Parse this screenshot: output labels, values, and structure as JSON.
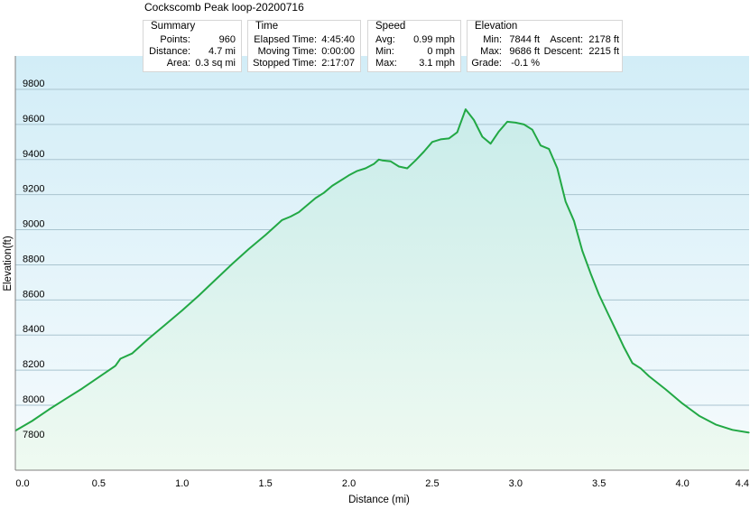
{
  "window_title": "Cockscomb Peak loop-20200716",
  "summary": {
    "header": "Summary",
    "points_label": "Points:",
    "points_value": "960",
    "distance_label": "Distance:",
    "distance_value": "4.7 mi",
    "area_label": "Area:",
    "area_value": "0.3 sq mi"
  },
  "time": {
    "header": "Time",
    "elapsed_label": "Elapsed Time:",
    "elapsed_value": "4:45:40",
    "moving_label": "Moving Time:",
    "moving_value": "0:00:00",
    "stopped_label": "Stopped Time:",
    "stopped_value": "2:17:07"
  },
  "speed": {
    "header": "Speed",
    "avg_label": "Avg:",
    "avg_value": "0.99 mph",
    "min_label": "Min:",
    "min_value": "0 mph",
    "max_label": "Max:",
    "max_value": "3.1 mph"
  },
  "elevation": {
    "header": "Elevation",
    "min_label": "Min:",
    "min_value": "7844 ft",
    "max_label": "Max:",
    "max_value": "9686 ft",
    "grade_label": "Grade:",
    "grade_value": "-0.1 %",
    "ascent_label": "Ascent:",
    "ascent_value": "2178 ft",
    "descent_label": "Descent:",
    "descent_value": "2215 ft"
  },
  "chart_data": {
    "type": "area",
    "title": "",
    "xlabel": "Distance  (mi)",
    "ylabel": "Elevation(ft)",
    "xlim": [
      0,
      4.4
    ],
    "ylim": [
      7630,
      9990
    ],
    "x_ticks": [
      0.0,
      0.5,
      1.0,
      1.5,
      2.0,
      2.5,
      3.0,
      3.5,
      4.0,
      4.4
    ],
    "x_tick_labels": [
      "0.0",
      "0.5",
      "1.0",
      "1.5",
      "2.0",
      "2.5",
      "3.0",
      "3.5",
      "4.0",
      "4.4"
    ],
    "y_ticks": [
      7800,
      8000,
      8200,
      8400,
      8600,
      8800,
      9000,
      9200,
      9400,
      9600,
      9800
    ],
    "y_tick_labels": [
      "7800",
      "8000",
      "8200",
      "8400",
      "8600",
      "8800",
      "9000",
      "9200",
      "9400",
      "9600",
      "9800"
    ],
    "grid": true,
    "line_color": "#22a845",
    "fill_top_color": "#c9ecea",
    "fill_bottom_color": "#effaf1",
    "background_top_color": "#d2edf7",
    "background_bottom_color": "#f6fbfd",
    "x": [
      0.0,
      0.1,
      0.2,
      0.3,
      0.4,
      0.5,
      0.6,
      0.63,
      0.7,
      0.8,
      0.9,
      1.0,
      1.1,
      1.2,
      1.3,
      1.4,
      1.5,
      1.6,
      1.65,
      1.7,
      1.8,
      1.85,
      1.9,
      2.0,
      2.05,
      2.1,
      2.15,
      2.18,
      2.2,
      2.25,
      2.3,
      2.35,
      2.4,
      2.45,
      2.5,
      2.55,
      2.6,
      2.65,
      2.7,
      2.75,
      2.8,
      2.85,
      2.9,
      2.95,
      3.0,
      3.05,
      3.1,
      3.15,
      3.2,
      3.25,
      3.3,
      3.35,
      3.4,
      3.45,
      3.5,
      3.55,
      3.6,
      3.65,
      3.7,
      3.75,
      3.8,
      3.9,
      4.0,
      4.1,
      4.2,
      4.3,
      4.4
    ],
    "y": [
      7855,
      7910,
      7975,
      8035,
      8095,
      8160,
      8225,
      8265,
      8295,
      8380,
      8460,
      8540,
      8625,
      8715,
      8805,
      8890,
      8970,
      9055,
      9075,
      9100,
      9180,
      9210,
      9250,
      9310,
      9335,
      9350,
      9375,
      9400,
      9395,
      9390,
      9360,
      9350,
      9395,
      9445,
      9500,
      9515,
      9520,
      9555,
      9686,
      9625,
      9530,
      9490,
      9560,
      9615,
      9610,
      9600,
      9570,
      9480,
      9460,
      9350,
      9160,
      9050,
      8880,
      8750,
      8630,
      8530,
      8430,
      8330,
      8240,
      8210,
      8165,
      8090,
      8010,
      7940,
      7890,
      7860,
      7844
    ]
  }
}
